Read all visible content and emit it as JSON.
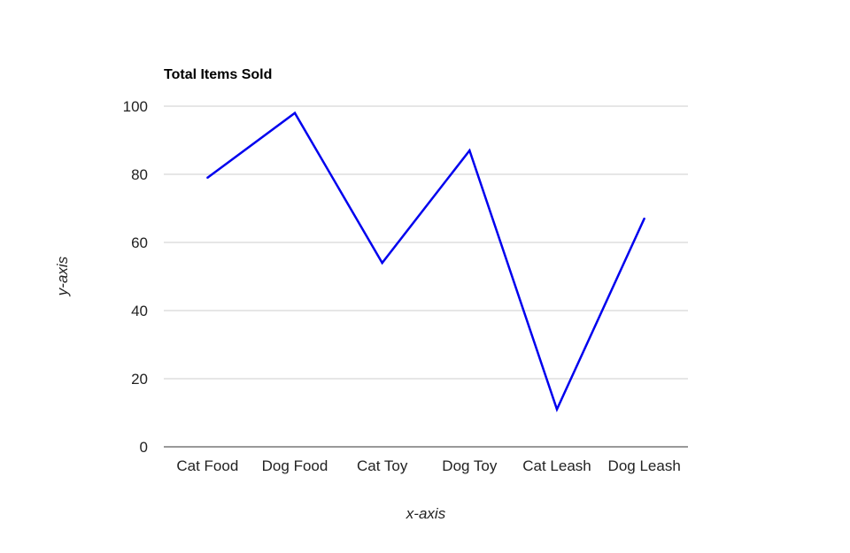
{
  "chart_data": {
    "type": "line",
    "title": "Total Items Sold",
    "xlabel": "x-axis",
    "ylabel": "y-axis",
    "categories": [
      "Cat Food",
      "Dog Food",
      "Cat Toy",
      "Dog Toy",
      "Cat Leash",
      "Dog Leash"
    ],
    "series": [
      {
        "values": [
          79,
          98,
          54,
          87,
          11,
          67
        ]
      }
    ],
    "ylim": [
      0,
      100
    ],
    "yticks": [
      0,
      20,
      40,
      60,
      80,
      100
    ],
    "grid": true,
    "legend": "none",
    "colors": {
      "line": "#0000ee",
      "grid": "#cccccc",
      "baseline": "#333333"
    }
  }
}
